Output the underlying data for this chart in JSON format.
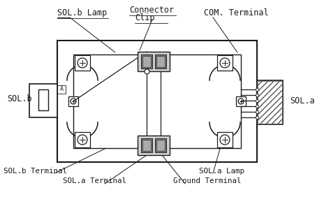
{
  "bg_color": "#ffffff",
  "line_color": "#1a1a1a",
  "labels": {
    "sol_b_lamp": "SOL.b Lamp",
    "connector": "Connector",
    "clip": "Clip",
    "com_terminal": "COM. Terminal",
    "sol_b": "SOL.b",
    "sol_a": "SOL.a",
    "sol_b_terminal": "SOL.b Terminal",
    "sol_a_terminal": "SOL.a Terminal",
    "sol_a_lamp": "SOL.a Lamp",
    "ground_terminal": "Ground Terminal"
  },
  "fig_width": 4.74,
  "fig_height": 2.92,
  "dpi": 100
}
